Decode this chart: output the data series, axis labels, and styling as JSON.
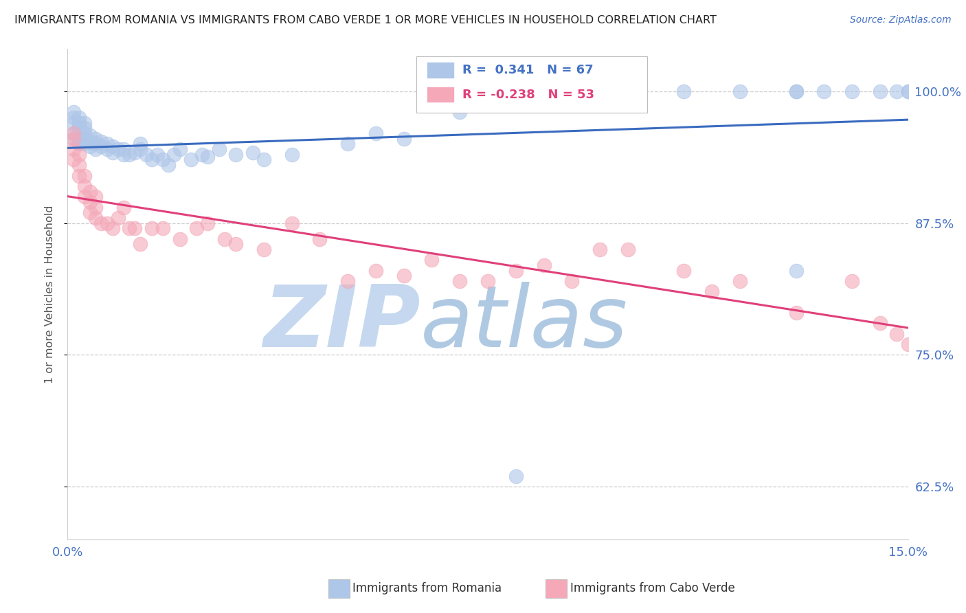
{
  "title": "IMMIGRANTS FROM ROMANIA VS IMMIGRANTS FROM CABO VERDE 1 OR MORE VEHICLES IN HOUSEHOLD CORRELATION CHART",
  "source": "Source: ZipAtlas.com",
  "ylabel_label": "1 or more Vehicles in Household",
  "legend1_label": "Immigrants from Romania",
  "legend2_label": "Immigrants from Cabo Verde",
  "R_romania": 0.341,
  "N_romania": 67,
  "R_caboverde": -0.238,
  "N_caboverde": 53,
  "romania_color": "#aec6e8",
  "caboverde_color": "#f4a8b8",
  "romania_line_color": "#3a6bbf",
  "caboverde_line_color": "#e0407a",
  "xlim": [
    0.0,
    0.15
  ],
  "ylim": [
    0.575,
    1.04
  ],
  "romania_x": [
    0.001,
    0.001,
    0.001,
    0.001,
    0.001,
    0.002,
    0.002,
    0.002,
    0.002,
    0.002,
    0.003,
    0.003,
    0.003,
    0.003,
    0.003,
    0.004,
    0.004,
    0.004,
    0.005,
    0.005,
    0.005,
    0.006,
    0.006,
    0.007,
    0.007,
    0.008,
    0.008,
    0.009,
    0.01,
    0.01,
    0.011,
    0.012,
    0.013,
    0.013,
    0.014,
    0.015,
    0.016,
    0.017,
    0.018,
    0.019,
    0.02,
    0.022,
    0.024,
    0.025,
    0.027,
    0.03,
    0.033,
    0.035,
    0.04,
    0.05,
    0.055,
    0.06,
    0.07,
    0.08,
    0.09,
    0.1,
    0.11,
    0.12,
    0.13,
    0.13,
    0.13,
    0.135,
    0.14,
    0.145,
    0.148,
    0.15,
    0.15
  ],
  "romania_y": [
    0.955,
    0.96,
    0.97,
    0.975,
    0.98,
    0.95,
    0.955,
    0.965,
    0.97,
    0.975,
    0.95,
    0.955,
    0.96,
    0.965,
    0.97,
    0.948,
    0.952,
    0.958,
    0.945,
    0.95,
    0.955,
    0.948,
    0.952,
    0.945,
    0.95,
    0.942,
    0.948,
    0.945,
    0.94,
    0.945,
    0.94,
    0.942,
    0.945,
    0.95,
    0.94,
    0.935,
    0.94,
    0.935,
    0.93,
    0.94,
    0.945,
    0.935,
    0.94,
    0.938,
    0.945,
    0.94,
    0.942,
    0.935,
    0.94,
    0.95,
    0.96,
    0.955,
    0.98,
    0.635,
    1.0,
    1.0,
    1.0,
    1.0,
    0.83,
    1.0,
    1.0,
    1.0,
    1.0,
    1.0,
    1.0,
    1.0,
    1.0
  ],
  "caboverde_x": [
    0.001,
    0.001,
    0.001,
    0.001,
    0.002,
    0.002,
    0.002,
    0.003,
    0.003,
    0.003,
    0.004,
    0.004,
    0.004,
    0.005,
    0.005,
    0.005,
    0.006,
    0.007,
    0.008,
    0.009,
    0.01,
    0.011,
    0.012,
    0.013,
    0.015,
    0.017,
    0.02,
    0.023,
    0.025,
    0.028,
    0.03,
    0.035,
    0.04,
    0.045,
    0.05,
    0.055,
    0.06,
    0.065,
    0.07,
    0.075,
    0.08,
    0.085,
    0.09,
    0.095,
    0.1,
    0.11,
    0.115,
    0.12,
    0.13,
    0.14,
    0.145,
    0.148,
    0.15
  ],
  "caboverde_y": [
    0.935,
    0.945,
    0.955,
    0.96,
    0.92,
    0.93,
    0.94,
    0.9,
    0.91,
    0.92,
    0.885,
    0.895,
    0.905,
    0.88,
    0.89,
    0.9,
    0.875,
    0.875,
    0.87,
    0.88,
    0.89,
    0.87,
    0.87,
    0.855,
    0.87,
    0.87,
    0.86,
    0.87,
    0.875,
    0.86,
    0.855,
    0.85,
    0.875,
    0.86,
    0.82,
    0.83,
    0.825,
    0.84,
    0.82,
    0.82,
    0.83,
    0.835,
    0.82,
    0.85,
    0.85,
    0.83,
    0.81,
    0.82,
    0.79,
    0.82,
    0.78,
    0.77,
    0.76
  ],
  "watermark_color": "#c5d8ef",
  "watermark_color2": "#a8c4e0",
  "background_color": "#ffffff",
  "grid_color": "#cccccc",
  "title_color": "#222222",
  "blue_color": "#4472c4",
  "pink_color": "#e0407a",
  "ytick_vals": [
    0.625,
    0.75,
    0.875,
    1.0
  ],
  "ytick_labels": [
    "62.5%",
    "75.0%",
    "87.5%",
    "100.0%"
  ]
}
